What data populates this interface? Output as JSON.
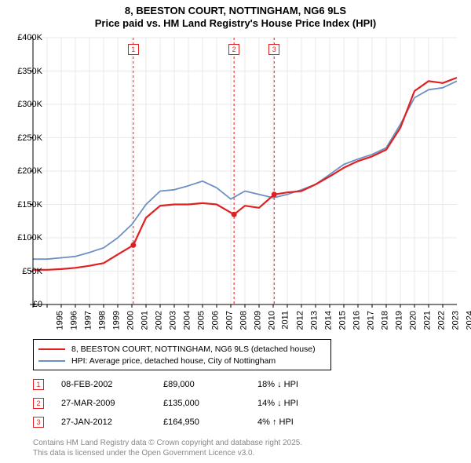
{
  "title_line1": "8, BEESTON COURT, NOTTINGHAM, NG6 9LS",
  "title_line2": "Price paid vs. HM Land Registry's House Price Index (HPI)",
  "chart": {
    "type": "line",
    "background_color": "#ffffff",
    "grid_color": "#e9e9e9",
    "grid_style": "solid",
    "xlim": [
      1995,
      2025
    ],
    "ylim": [
      0,
      400000
    ],
    "ytick_step": 50000,
    "ytick_labels": [
      "£0",
      "£50K",
      "£100K",
      "£150K",
      "£200K",
      "£250K",
      "£300K",
      "£350K",
      "£400K"
    ],
    "xtick_step": 1,
    "xtick_labels": [
      "1995",
      "1996",
      "1997",
      "1998",
      "1999",
      "2000",
      "2001",
      "2002",
      "2003",
      "2004",
      "2005",
      "2006",
      "2007",
      "2008",
      "2009",
      "2010",
      "2011",
      "2012",
      "2013",
      "2014",
      "2015",
      "2016",
      "2017",
      "2018",
      "2019",
      "2020",
      "2021",
      "2022",
      "2023",
      "2024"
    ],
    "axis_color": "#000000",
    "label_fontsize": 11,
    "series": [
      {
        "name": "price_paid",
        "label": "8, BEESTON COURT, NOTTINGHAM, NG6 9LS (detached house)",
        "color": "#e02020",
        "line_width": 2.2,
        "x": [
          1995,
          1996,
          1997,
          1998,
          1999,
          2000,
          2001,
          2002.1,
          2003,
          2004,
          2005,
          2006,
          2007,
          2008,
          2009.23,
          2010,
          2011,
          2012.07,
          2013,
          2014,
          2015,
          2016,
          2017,
          2018,
          2019,
          2020,
          2021,
          2022,
          2023,
          2024,
          2025
        ],
        "y": [
          52000,
          52000,
          53000,
          55000,
          58000,
          62000,
          75000,
          89000,
          130000,
          148000,
          150000,
          150000,
          152000,
          150000,
          135000,
          148000,
          145000,
          164950,
          168000,
          170000,
          180000,
          192000,
          205000,
          215000,
          222000,
          232000,
          265000,
          320000,
          335000,
          332000,
          340000
        ]
      },
      {
        "name": "hpi",
        "label": "HPI: Average price, detached house, City of Nottingham",
        "color": "#6b90c4",
        "line_width": 1.8,
        "x": [
          1995,
          1996,
          1997,
          1998,
          1999,
          2000,
          2001,
          2002,
          2003,
          2004,
          2005,
          2006,
          2007,
          2008,
          2009,
          2010,
          2011,
          2012,
          2013,
          2014,
          2015,
          2016,
          2017,
          2018,
          2019,
          2020,
          2021,
          2022,
          2023,
          2024,
          2025
        ],
        "y": [
          68000,
          68000,
          70000,
          72000,
          78000,
          85000,
          100000,
          120000,
          150000,
          170000,
          172000,
          178000,
          185000,
          175000,
          158000,
          170000,
          165000,
          160000,
          165000,
          172000,
          180000,
          195000,
          210000,
          218000,
          225000,
          235000,
          270000,
          310000,
          322000,
          325000,
          335000
        ]
      }
    ],
    "sale_markers": [
      {
        "n": "1",
        "x": 2002.1
      },
      {
        "n": "2",
        "x": 2009.23
      },
      {
        "n": "3",
        "x": 2012.07
      }
    ],
    "marker_line_color": "#e02020",
    "marker_line_dash": "3,3",
    "marker_box_border": "#e02020",
    "marker_box_text_color": "#e02020"
  },
  "legend": {
    "items": [
      {
        "color": "#e02020",
        "label": "8, BEESTON COURT, NOTTINGHAM, NG6 9LS (detached house)"
      },
      {
        "color": "#6b90c4",
        "label": "HPI: Average price, detached house, City of Nottingham"
      }
    ],
    "border_color": "#000000",
    "fontsize": 10.5
  },
  "sales": [
    {
      "n": "1",
      "date": "08-FEB-2002",
      "price": "£89,000",
      "delta": "18% ↓ HPI"
    },
    {
      "n": "2",
      "date": "27-MAR-2009",
      "price": "£135,000",
      "delta": "14% ↓ HPI"
    },
    {
      "n": "3",
      "date": "27-JAN-2012",
      "price": "£164,950",
      "delta": "4% ↑ HPI"
    }
  ],
  "footer_line1": "Contains HM Land Registry data © Crown copyright and database right 2025.",
  "footer_line2": "This data is licensed under the Open Government Licence v3.0."
}
